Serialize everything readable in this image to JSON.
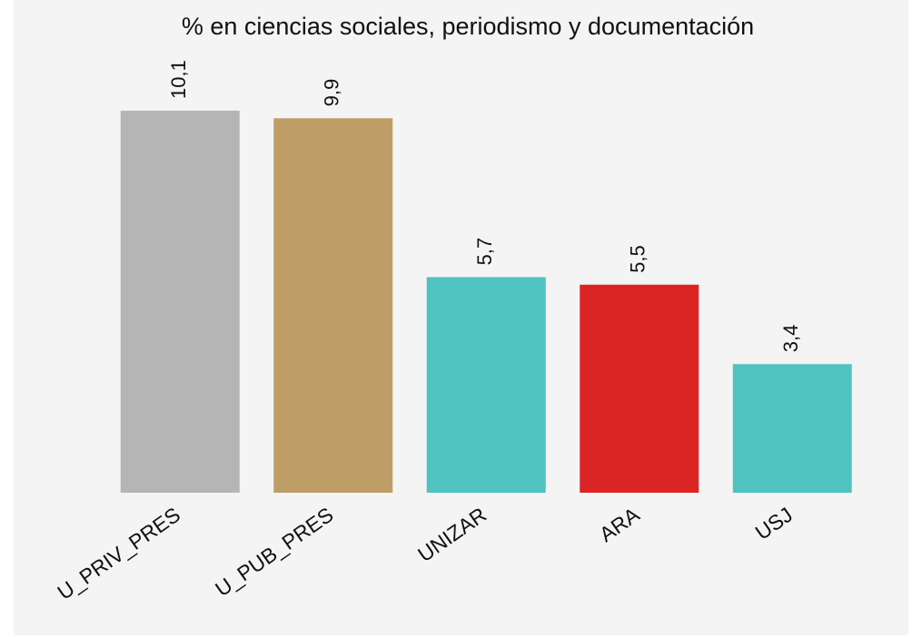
{
  "chart_data": {
    "type": "bar",
    "title": "% en ciencias sociales, periodismo y documentación",
    "categories": [
      "U_PRIV_PRES",
      "U_PUB_PRES",
      "UNIZAR",
      "ARA",
      "USJ"
    ],
    "values": [
      10.1,
      9.9,
      5.7,
      5.5,
      3.4
    ],
    "value_labels": [
      "10,1",
      "9,9",
      "5,7",
      "5,5",
      "3,4"
    ],
    "colors": [
      "#b5b5b5",
      "#be9e66",
      "#4fc3bf",
      "#db2525",
      "#4fc3bf"
    ],
    "ylim": [
      0,
      10.1
    ]
  }
}
